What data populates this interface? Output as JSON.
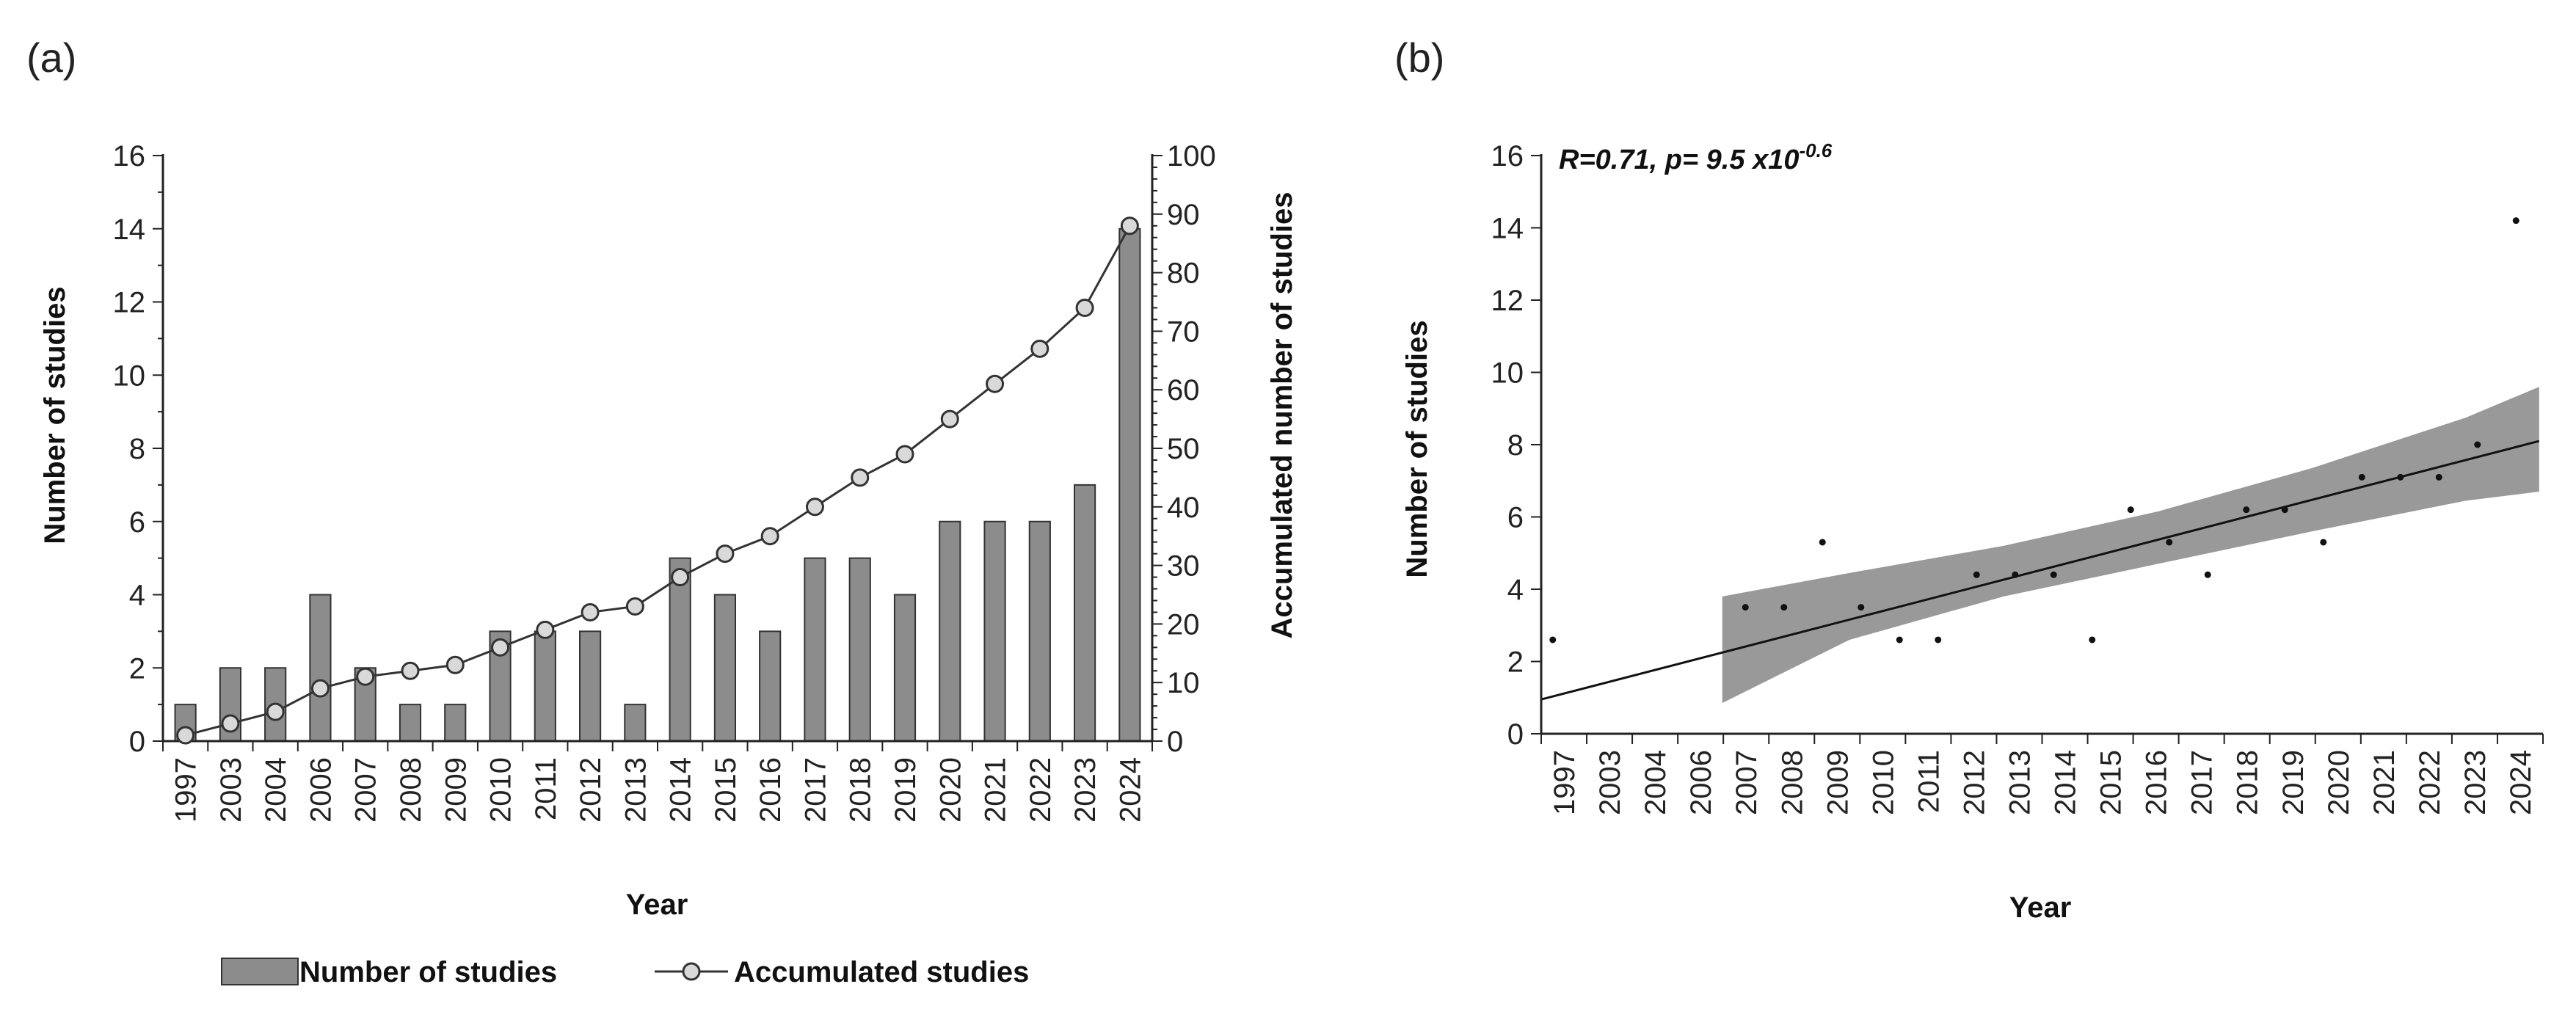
{
  "chart_data": [
    {
      "panel_label": "(a)",
      "type": "bar",
      "categories": [
        "1997",
        "2003",
        "2004",
        "2006",
        "2007",
        "2008",
        "2009",
        "2010",
        "2011",
        "2012",
        "2013",
        "2014",
        "2015",
        "2016",
        "2017",
        "2018",
        "2019",
        "2020",
        "2021",
        "2022",
        "2023",
        "2024"
      ],
      "series": [
        {
          "name": "Number of studies",
          "chart": "bar",
          "axis": "left",
          "color": "#8c8c8c",
          "values": [
            1,
            2,
            2,
            4,
            2,
            1,
            1,
            3,
            3,
            3,
            1,
            5,
            4,
            3,
            5,
            5,
            4,
            6,
            6,
            6,
            7,
            14
          ]
        },
        {
          "name": "Accumulated studies",
          "chart": "line",
          "axis": "right",
          "marker": "circle",
          "color": "#333333",
          "values": [
            1,
            3,
            5,
            9,
            11,
            12,
            13,
            16,
            19,
            22,
            23,
            28,
            32,
            35,
            40,
            45,
            49,
            55,
            61,
            67,
            74,
            88
          ]
        }
      ],
      "xlabel": "Year",
      "ylabel": "Number of studies",
      "y2label": "Accumulated number of studies",
      "ylim": [
        0,
        16
      ],
      "y2lim": [
        0,
        100
      ],
      "yticks": [
        "0",
        "2",
        "4",
        "6",
        "8",
        "10",
        "12",
        "14",
        "16"
      ],
      "y2ticks": [
        "0",
        "10",
        "20",
        "30",
        "40",
        "50",
        "60",
        "70",
        "80",
        "90",
        "100"
      ],
      "legend": {
        "placement": "bottom",
        "items": [
          "Number of studies",
          "Accumulated studies"
        ]
      }
    },
    {
      "panel_label": "(b)",
      "type": "scatter",
      "categories": [
        "1997",
        "2003",
        "2004",
        "2006",
        "2007",
        "2008",
        "2009",
        "2010",
        "2011",
        "2012",
        "2013",
        "2014",
        "2015",
        "2016",
        "2017",
        "2018",
        "2019",
        "2020",
        "2021",
        "2022",
        "2023",
        "2024"
      ],
      "points": [
        {
          "x": 0.3,
          "y": 2.6
        },
        {
          "x": 5.3,
          "y": 3.5
        },
        {
          "x": 6.3,
          "y": 3.5
        },
        {
          "x": 7.3,
          "y": 5.3
        },
        {
          "x": 8.3,
          "y": 3.5
        },
        {
          "x": 9.3,
          "y": 2.6
        },
        {
          "x": 10.3,
          "y": 2.6
        },
        {
          "x": 11.3,
          "y": 4.4
        },
        {
          "x": 12.3,
          "y": 4.4
        },
        {
          "x": 13.3,
          "y": 4.4
        },
        {
          "x": 14.3,
          "y": 2.6
        },
        {
          "x": 15.3,
          "y": 6.2
        },
        {
          "x": 16.3,
          "y": 5.3
        },
        {
          "x": 17.3,
          "y": 4.4
        },
        {
          "x": 18.3,
          "y": 6.2
        },
        {
          "x": 19.3,
          "y": 6.2
        },
        {
          "x": 20.3,
          "y": 5.3
        },
        {
          "x": 21.3,
          "y": 7.1
        },
        {
          "x": 22.3,
          "y": 7.1
        },
        {
          "x": 23.3,
          "y": 7.1
        },
        {
          "x": 24.3,
          "y": 8.0
        },
        {
          "x": 25.3,
          "y": 14.2
        }
      ],
      "fit_line": {
        "x0": 0,
        "y0": 0.95,
        "x1": 25.9,
        "y1": 8.1
      },
      "confidence_band": {
        "x": [
          4.7,
          8,
          12,
          16,
          20,
          24,
          25.9
        ],
        "upper": [
          3.8,
          4.45,
          5.2,
          6.15,
          7.35,
          8.75,
          9.6
        ],
        "lower": [
          0.85,
          2.6,
          3.8,
          4.7,
          5.6,
          6.45,
          6.7
        ]
      },
      "annotation": {
        "main": "R=0.71, p= 9.5 x10",
        "superscript": "-0.6"
      },
      "xlabel": "Year",
      "ylabel": "Number of studies",
      "ylim": [
        0,
        16
      ],
      "yticks": [
        "0",
        "2",
        "4",
        "6",
        "8",
        "10",
        "12",
        "14",
        "16"
      ],
      "colors": {
        "band": "#999999",
        "line": "#111111",
        "point": "#111111"
      }
    }
  ]
}
